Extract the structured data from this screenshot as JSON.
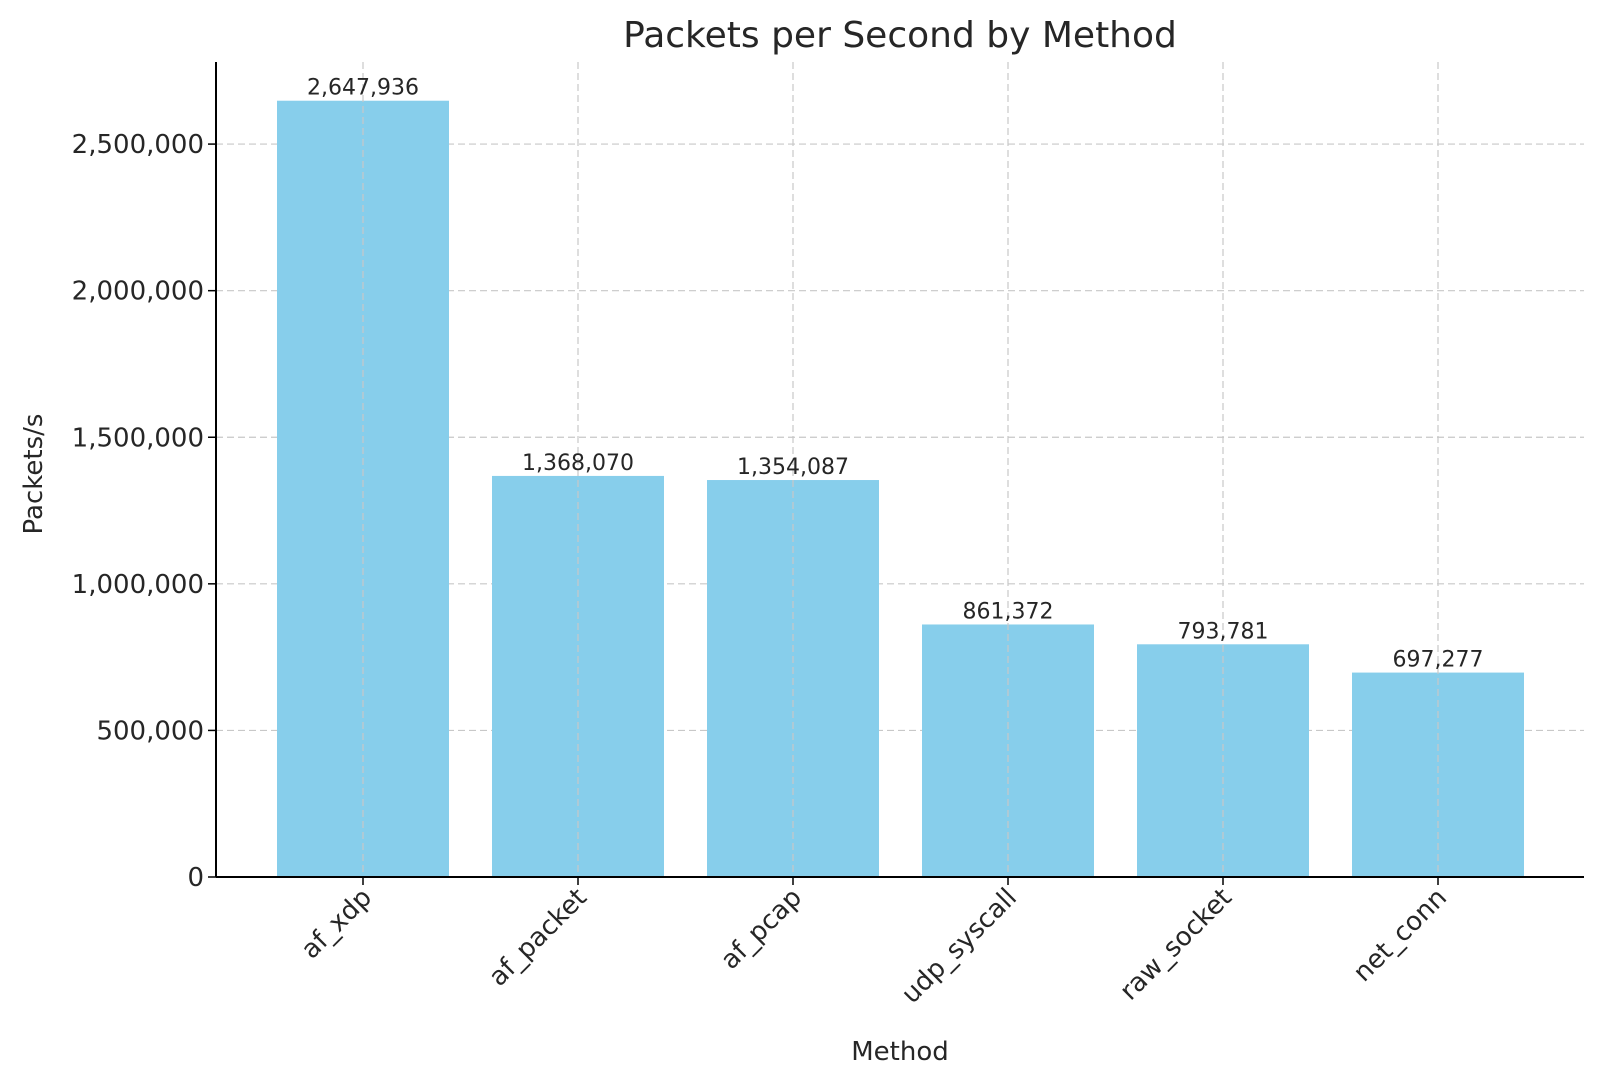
{
  "chart_data": {
    "type": "bar",
    "title": "Packets per Second by Method",
    "xlabel": "Method",
    "ylabel": "Packets/s",
    "categories": [
      "af_xdp",
      "af_packet",
      "af_pcap",
      "udp_syscall",
      "raw_socket",
      "net_conn"
    ],
    "values": [
      2647936,
      1368070,
      1354087,
      861372,
      793781,
      697277
    ],
    "value_labels": [
      "2,647,936",
      "1,368,070",
      "1,354,087",
      "861,372",
      "793,781",
      "697,277"
    ],
    "ylim": [
      0,
      2780000
    ],
    "yticks": [
      0,
      500000,
      1000000,
      1500000,
      2000000,
      2500000
    ],
    "ytick_labels": [
      "0",
      "500,000",
      "1,000,000",
      "1,500,000",
      "2,000,000",
      "2,500,000"
    ],
    "grid": true,
    "legend": "none",
    "bar_color": "#87ceeb"
  }
}
